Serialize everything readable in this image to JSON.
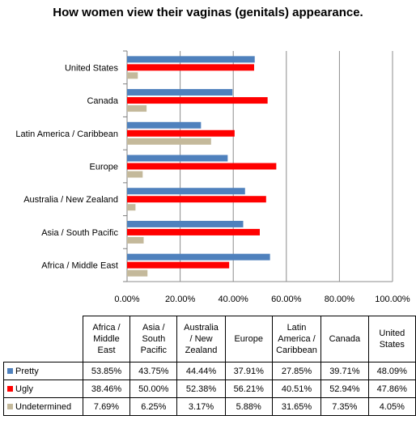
{
  "title": "How women view their vaginas (genitals) appearance.",
  "chart_data": {
    "type": "bar",
    "orientation": "horizontal",
    "categories": [
      "United States",
      "Canada",
      "Latin America / Caribbean",
      "Europe",
      "Australia / New Zealand",
      "Asia / South Pacific",
      "Africa / Middle East"
    ],
    "series": [
      {
        "name": "Pretty",
        "color": "#4f81bd",
        "values": [
          48.09,
          39.71,
          27.85,
          37.91,
          44.44,
          43.75,
          53.85
        ]
      },
      {
        "name": "Ugly",
        "color": "#ff0000",
        "values": [
          47.86,
          52.94,
          40.51,
          56.21,
          52.38,
          50.0,
          38.46
        ]
      },
      {
        "name": "Undetermined",
        "color": "#c4b99b",
        "values": [
          4.05,
          7.35,
          31.65,
          5.88,
          3.17,
          6.25,
          7.69
        ]
      }
    ],
    "xlim": [
      0,
      100
    ],
    "xticks": [
      "0.00%",
      "20.00%",
      "40.00%",
      "60.00%",
      "80.00%",
      "100.00%"
    ],
    "grid": true,
    "legend": "table-below"
  },
  "table": {
    "columns": [
      "Africa / Middle East",
      "Asia / South Pacific",
      "Australia / New Zealand",
      "Europe",
      "Latin America / Caribbean",
      "Canada",
      "United States"
    ],
    "column_lines": [
      [
        "Africa /",
        "Middle",
        "East"
      ],
      [
        "Asia /",
        "South",
        "Pacific"
      ],
      [
        "Australia",
        "/ New",
        "Zealand"
      ],
      [
        "Europe"
      ],
      [
        "Latin",
        "America /",
        "Caribbean"
      ],
      [
        "Canada"
      ],
      [
        "United",
        "States"
      ]
    ],
    "rows": [
      {
        "label": "Pretty",
        "color": "#4f81bd",
        "cells": [
          "53.85%",
          "43.75%",
          "44.44%",
          "37.91%",
          "27.85%",
          "39.71%",
          "48.09%"
        ]
      },
      {
        "label": "Ugly",
        "color": "#ff0000",
        "cells": [
          "38.46%",
          "50.00%",
          "52.38%",
          "56.21%",
          "40.51%",
          "52.94%",
          "47.86%"
        ]
      },
      {
        "label": "Undetermined",
        "color": "#c4b99b",
        "cells": [
          "7.69%",
          "6.25%",
          "3.17%",
          "5.88%",
          "31.65%",
          "7.35%",
          "4.05%"
        ]
      }
    ]
  }
}
